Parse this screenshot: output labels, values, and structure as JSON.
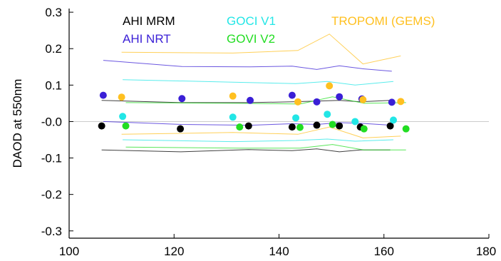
{
  "chart_data": {
    "type": "scatter",
    "title": "",
    "xlabel": "",
    "ylabel": "DAOD at 550nm",
    "xlim": [
      100,
      180
    ],
    "ylim": [
      -0.32,
      0.31
    ],
    "x_ticks": [
      100,
      120,
      140,
      160,
      180
    ],
    "y_ticks": [
      0.3,
      0.2,
      0.1,
      0.0,
      -0.1,
      -0.2,
      -0.3
    ],
    "y_tick_labels": [
      "0.3",
      "0.2",
      "0.1",
      "-0.0",
      "-0.1",
      "-0.2",
      "-0.3"
    ],
    "zero_line": true,
    "legend": [
      {
        "label": "AHI MRM",
        "color": "#000000"
      },
      {
        "label": "AHI NRT",
        "color": "#3a1fd6"
      },
      {
        "label": "GOCI V1",
        "color": "#22e6e6"
      },
      {
        "label": "GOVI V2",
        "color": "#22dd22"
      },
      {
        "label": "TROPOMI (GEMS)",
        "color": "#ffc020"
      }
    ],
    "series": [
      {
        "name": "AHI MRM",
        "color": "#000000",
        "points": [
          [
            106.2,
            -0.012
          ],
          [
            121.2,
            -0.02
          ],
          [
            134.2,
            -0.012
          ],
          [
            142.5,
            -0.015
          ],
          [
            147.2,
            -0.01
          ],
          [
            151.5,
            -0.012
          ],
          [
            155.5,
            -0.015
          ],
          [
            161.2,
            -0.012
          ]
        ],
        "upper": [
          [
            106.2,
            0.058
          ],
          [
            121.2,
            0.052
          ],
          [
            134.2,
            0.052
          ],
          [
            142.5,
            0.054
          ],
          [
            147.2,
            0.056
          ],
          [
            151.5,
            0.058
          ],
          [
            155.5,
            0.054
          ],
          [
            161.2,
            0.058
          ]
        ],
        "lower": [
          [
            106.2,
            -0.078
          ],
          [
            121.2,
            -0.083
          ],
          [
            134.2,
            -0.077
          ],
          [
            142.5,
            -0.08
          ],
          [
            147.2,
            -0.075
          ],
          [
            151.5,
            -0.083
          ],
          [
            155.5,
            -0.078
          ],
          [
            161.2,
            -0.078
          ]
        ]
      },
      {
        "name": "AHI NRT",
        "color": "#3a1fd6",
        "points": [
          [
            106.5,
            0.072
          ],
          [
            121.5,
            0.063
          ],
          [
            134.5,
            0.058
          ],
          [
            142.5,
            0.072
          ],
          [
            147.2,
            0.054
          ],
          [
            151.5,
            0.068
          ],
          [
            155.8,
            0.062
          ],
          [
            161.5,
            0.053
          ]
        ],
        "upper": [
          [
            106.5,
            0.168
          ],
          [
            121.5,
            0.151
          ],
          [
            134.5,
            0.15
          ],
          [
            142.5,
            0.152
          ],
          [
            147.2,
            0.143
          ],
          [
            151.5,
            0.153
          ],
          [
            155.8,
            0.145
          ],
          [
            161.5,
            0.138
          ]
        ],
        "lower": [
          [
            106.5,
            0.0
          ],
          [
            121.5,
            -0.008
          ],
          [
            134.5,
            -0.01
          ],
          [
            142.5,
            -0.006
          ],
          [
            147.2,
            -0.008
          ],
          [
            151.5,
            -0.003
          ],
          [
            155.8,
            -0.005
          ],
          [
            161.5,
            -0.01
          ]
        ]
      },
      {
        "name": "GOCI V1",
        "color": "#22e6e6",
        "points": [
          [
            110.2,
            0.014
          ],
          [
            131.2,
            0.012
          ],
          [
            143.2,
            0.01
          ],
          [
            149.2,
            0.02
          ],
          [
            154.5,
            0.0
          ],
          [
            161.8,
            0.004
          ]
        ],
        "upper": [
          [
            110.2,
            0.115
          ],
          [
            131.2,
            0.108
          ],
          [
            143.2,
            0.104
          ],
          [
            149.2,
            0.11
          ],
          [
            154.5,
            0.1
          ],
          [
            161.8,
            0.11
          ]
        ],
        "lower": [
          [
            110.2,
            -0.05
          ],
          [
            131.2,
            -0.055
          ],
          [
            143.2,
            -0.052
          ],
          [
            149.2,
            -0.048
          ],
          [
            154.5,
            -0.054
          ],
          [
            161.8,
            -0.05
          ]
        ]
      },
      {
        "name": "GOVI V2",
        "color": "#22dd22",
        "points": [
          [
            110.8,
            -0.012
          ],
          [
            132.5,
            -0.015
          ],
          [
            144.0,
            -0.016
          ],
          [
            150.2,
            -0.008
          ],
          [
            156.2,
            -0.02
          ],
          [
            164.2,
            -0.02
          ]
        ],
        "upper": [
          [
            110.8,
            0.052
          ],
          [
            132.5,
            0.05
          ],
          [
            144.0,
            0.048
          ],
          [
            150.2,
            0.068
          ],
          [
            156.2,
            0.05
          ],
          [
            164.2,
            0.052
          ]
        ],
        "lower": [
          [
            110.8,
            -0.07
          ],
          [
            132.5,
            -0.073
          ],
          [
            144.0,
            -0.073
          ],
          [
            150.2,
            -0.063
          ],
          [
            156.2,
            -0.078
          ],
          [
            164.2,
            -0.078
          ]
        ]
      },
      {
        "name": "TROPOMI (GEMS)",
        "color": "#ffc020",
        "points": [
          [
            110.0,
            0.067
          ],
          [
            131.2,
            0.07
          ],
          [
            143.6,
            0.054
          ],
          [
            149.6,
            0.098
          ],
          [
            156.0,
            0.06
          ],
          [
            163.2,
            0.055
          ]
        ],
        "upper": [
          [
            110.0,
            0.19
          ],
          [
            131.2,
            0.188
          ],
          [
            143.6,
            0.195
          ],
          [
            149.6,
            0.24
          ],
          [
            156.0,
            0.158
          ],
          [
            163.2,
            0.18
          ]
        ],
        "lower": [
          [
            110.0,
            -0.035
          ],
          [
            131.2,
            -0.03
          ],
          [
            143.6,
            -0.035
          ],
          [
            149.6,
            -0.015
          ],
          [
            156.0,
            -0.045
          ],
          [
            163.2,
            -0.04
          ]
        ]
      }
    ]
  }
}
